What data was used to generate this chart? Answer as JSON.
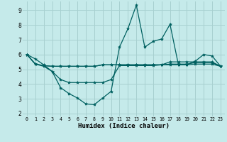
{
  "xlabel": "Humidex (Indice chaleur)",
  "background_color": "#c5eaea",
  "grid_color": "#a8d0d0",
  "line_color": "#006060",
  "xlim": [
    -0.5,
    23.5
  ],
  "ylim": [
    1.8,
    9.6
  ],
  "yticks": [
    2,
    3,
    4,
    5,
    6,
    7,
    8,
    9
  ],
  "xticks": [
    0,
    1,
    2,
    3,
    4,
    5,
    6,
    7,
    8,
    9,
    10,
    11,
    12,
    13,
    14,
    15,
    16,
    17,
    18,
    19,
    20,
    21,
    22,
    23
  ],
  "series1_x": [
    0,
    1,
    2,
    3,
    4,
    5,
    6,
    7,
    8,
    9,
    10,
    11,
    12,
    13,
    14,
    15,
    16,
    17,
    18,
    19,
    20,
    21,
    22,
    23
  ],
  "series1_y": [
    6.0,
    5.7,
    5.3,
    4.85,
    3.75,
    3.35,
    3.05,
    2.65,
    2.6,
    3.05,
    3.5,
    6.5,
    7.75,
    9.35,
    6.5,
    6.9,
    7.05,
    8.05,
    5.3,
    5.3,
    5.55,
    6.0,
    5.9,
    5.2
  ],
  "series2_x": [
    0,
    1,
    2,
    3,
    4,
    5,
    6,
    7,
    8,
    9,
    10,
    11,
    12,
    13,
    14,
    15,
    16,
    17,
    18,
    19,
    20,
    21,
    22,
    23
  ],
  "series2_y": [
    6.0,
    5.35,
    5.25,
    5.2,
    5.2,
    5.2,
    5.2,
    5.2,
    5.2,
    5.3,
    5.3,
    5.3,
    5.3,
    5.3,
    5.3,
    5.3,
    5.3,
    5.35,
    5.35,
    5.35,
    5.45,
    5.45,
    5.45,
    5.2
  ],
  "series3_x": [
    0,
    1,
    2,
    3,
    4,
    5,
    6,
    7,
    8,
    9,
    10,
    11,
    12,
    13,
    14,
    15,
    16,
    17,
    18,
    19,
    20,
    21,
    22,
    23
  ],
  "series3_y": [
    6.0,
    5.35,
    5.25,
    5.2,
    5.2,
    5.2,
    5.2,
    5.2,
    5.2,
    5.3,
    5.3,
    5.3,
    5.3,
    5.3,
    5.3,
    5.3,
    5.3,
    5.5,
    5.5,
    5.5,
    5.5,
    5.5,
    5.5,
    5.2
  ],
  "series4_x": [
    0,
    1,
    2,
    3,
    4,
    5,
    6,
    7,
    8,
    9,
    10,
    11,
    12,
    13,
    14,
    15,
    16,
    17,
    18,
    19,
    20,
    21,
    22,
    23
  ],
  "series4_y": [
    6.0,
    5.35,
    5.2,
    4.85,
    4.3,
    4.1,
    4.1,
    4.1,
    4.1,
    4.1,
    4.3,
    5.25,
    5.25,
    5.25,
    5.25,
    5.25,
    5.3,
    5.3,
    5.3,
    5.3,
    5.35,
    5.35,
    5.35,
    5.2
  ],
  "marker": "*",
  "markersize": 3.0,
  "linewidth": 0.9
}
